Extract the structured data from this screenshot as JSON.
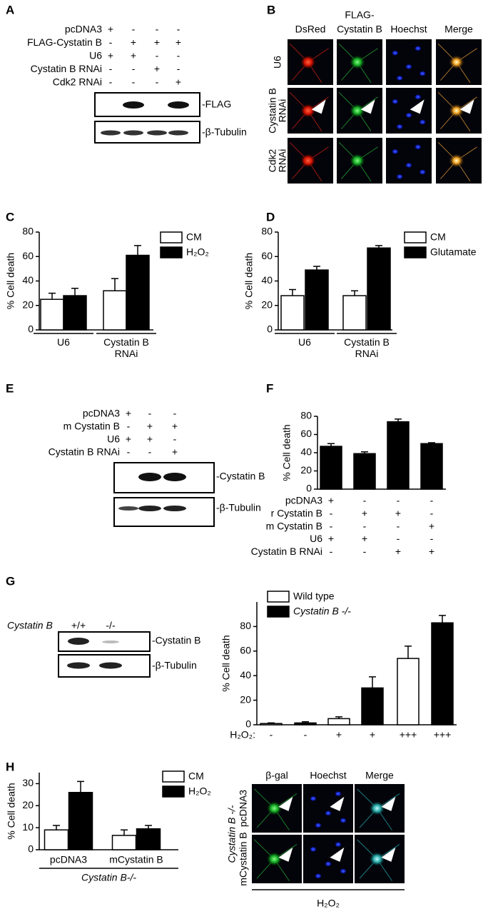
{
  "panel_labels": [
    "A",
    "B",
    "C",
    "D",
    "E",
    "F",
    "G",
    "H"
  ],
  "blot_A": {
    "rows": [
      {
        "label": "pcDNA3",
        "signs": [
          "+",
          "-",
          "-",
          "-"
        ]
      },
      {
        "label": "FLAG-Cystatin B",
        "signs": [
          "-",
          "+",
          "+",
          "+"
        ]
      },
      {
        "label": "U6",
        "signs": [
          "+",
          "+",
          "-",
          "-"
        ]
      },
      {
        "label": "Cystatin B RNAi",
        "signs": [
          "-",
          "-",
          "+",
          "-"
        ]
      },
      {
        "label": "Cdk2 RNAi",
        "signs": [
          "-",
          "-",
          "-",
          "+"
        ]
      }
    ],
    "bands": [
      "-FLAG",
      "-β-Tubulin"
    ]
  },
  "micrograph_B": {
    "columns": [
      [
        "DsRed"
      ],
      [
        "FLAG-",
        "Cystatin B"
      ],
      [
        "Hoechst"
      ],
      [
        "Merge"
      ]
    ],
    "rows": [
      [
        "U6"
      ],
      [
        "Cystatin B",
        "RNAi"
      ],
      [
        "Cdk2",
        "RNAi"
      ]
    ]
  },
  "blot_E": {
    "rows": [
      {
        "label": "pcDNA3",
        "signs": [
          "+",
          "-",
          "-"
        ]
      },
      {
        "label": "m Cystatin B",
        "signs": [
          "-",
          "+",
          "+"
        ]
      },
      {
        "label": "U6",
        "signs": [
          "+",
          "+",
          "-"
        ]
      },
      {
        "label": "Cystatin B RNAi",
        "signs": [
          "-",
          "-",
          "+"
        ]
      }
    ],
    "bands": [
      "-Cystatin B",
      "-β-Tubulin"
    ]
  },
  "blot_G": {
    "genotype_label": "Cystatin B",
    "lanes": [
      "+/+",
      "-/-"
    ],
    "bands": [
      "-Cystatin B",
      "-β-Tubulin"
    ]
  },
  "micrograph_H": {
    "columns": [
      "β-gal",
      "Hoechst",
      "Merge"
    ],
    "genotype_label": "Cystatin B -/-",
    "rows": [
      "pcDNA3",
      "mCystatin B"
    ],
    "treatment": "H₂O₂"
  },
  "chart_data": [
    {
      "type": "bar",
      "ylabel": "% Cell death",
      "categories": [
        "U6",
        "Cystatin B RNAi"
      ],
      "series": [
        {
          "name": "CM",
          "color": "#ffffff",
          "values": [
            25,
            32
          ],
          "errors": [
            5,
            10
          ]
        },
        {
          "name": "H₂O₂",
          "color": "#000000",
          "values": [
            28,
            61
          ],
          "errors": [
            6,
            8
          ]
        }
      ],
      "ylim": [
        0,
        80
      ],
      "yticks": [
        0,
        20,
        40,
        60,
        80
      ]
    },
    {
      "type": "bar",
      "ylabel": "% Cell death",
      "categories": [
        "U6",
        "Cystatin B RNAi"
      ],
      "series": [
        {
          "name": "CM",
          "color": "#ffffff",
          "values": [
            28,
            28
          ],
          "errors": [
            5,
            4
          ]
        },
        {
          "name": "Glutamate",
          "color": "#000000",
          "values": [
            49,
            67
          ],
          "errors": [
            3,
            2
          ]
        }
      ],
      "ylim": [
        0,
        80
      ],
      "yticks": [
        0,
        20,
        40,
        60,
        80
      ]
    },
    {
      "type": "bar",
      "ylabel": "% Cell death",
      "values": [
        47,
        39,
        74,
        50
      ],
      "errors": [
        3,
        2,
        3,
        1
      ],
      "color": "#000000",
      "conditions": [
        {
          "label": "pcDNA3",
          "signs": [
            "+",
            "-",
            "-",
            "-"
          ]
        },
        {
          "label": "r Cystatin B",
          "signs": [
            "-",
            "+",
            "+",
            "-"
          ]
        },
        {
          "label": "m Cystatin B",
          "signs": [
            "-",
            "-",
            "-",
            "+"
          ]
        },
        {
          "label": "U6",
          "signs": [
            "+",
            "+",
            "-",
            "-"
          ]
        },
        {
          "label": "Cystatin B RNAi",
          "signs": [
            "-",
            "-",
            "+",
            "+"
          ]
        }
      ],
      "ylim": [
        0,
        80
      ],
      "yticks": [
        0,
        20,
        40,
        60,
        80
      ]
    },
    {
      "type": "bar",
      "ylabel": "% Cell death",
      "xlabel": "H₂O₂:",
      "categories": [
        "-",
        "-",
        "+",
        "+",
        "+++",
        "+++"
      ],
      "series": [
        {
          "name": "Wild type",
          "color": "#ffffff",
          "values": [
            1,
            null,
            5,
            null,
            54,
            null
          ],
          "errors": [
            0.5,
            null,
            1.5,
            null,
            10,
            null
          ]
        },
        {
          "name": "Cystatin B -/-",
          "color": "#000000",
          "font_style": "italic",
          "values": [
            null,
            1.5,
            null,
            30,
            null,
            83
          ],
          "errors": [
            null,
            1,
            null,
            9,
            null,
            6
          ]
        }
      ],
      "ylim": [
        0,
        100
      ],
      "yticks": [
        0,
        20,
        40,
        60,
        80
      ]
    },
    {
      "type": "bar",
      "ylabel": "% Cell death",
      "categories": [
        "pcDNA3",
        "mCystatin B"
      ],
      "group_label": "Cystatin B-/-",
      "series": [
        {
          "name": "CM",
          "color": "#ffffff",
          "values": [
            9,
            6.5
          ],
          "errors": [
            2,
            2.5
          ]
        },
        {
          "name": "H₂O₂",
          "color": "#000000",
          "values": [
            26,
            9.5
          ],
          "errors": [
            5,
            1.5
          ]
        }
      ],
      "ylim": [
        0,
        35
      ],
      "yticks": [
        0,
        10,
        20,
        30
      ]
    }
  ]
}
